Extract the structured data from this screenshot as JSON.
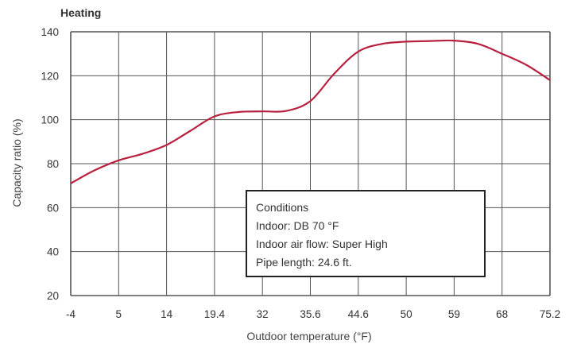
{
  "chart_data": {
    "type": "line",
    "title": "Heating",
    "xlabel": "Outdoor temperature (°F)",
    "ylabel": "Capacity ratio (%)",
    "x_ticks": [
      "-4",
      "5",
      "14",
      "19.4",
      "32",
      "35.6",
      "44.6",
      "50",
      "59",
      "68",
      "75.2"
    ],
    "y_ticks": [
      "20",
      "40",
      "60",
      "80",
      "100",
      "120",
      "140"
    ],
    "ylim": [
      20,
      140
    ],
    "grid": true,
    "series": [
      {
        "color": "#b8203f",
        "x_index": [
          0,
          0.5,
          1,
          1.5,
          2,
          2.5,
          3,
          3.5,
          4,
          4.5,
          5,
          5.5,
          6,
          6.5,
          7,
          7.5,
          8,
          8.5,
          9,
          9.5,
          10
        ],
        "values": [
          71,
          77,
          81.5,
          84.5,
          88.5,
          95,
          101.5,
          103.5,
          103.8,
          104,
          108.5,
          121,
          131,
          134.5,
          135.5,
          135.8,
          136,
          134.5,
          130,
          125,
          118
        ]
      }
    ],
    "annotation": {
      "lines": [
        "Conditions",
        "Indoor: DB 70 °F",
        "Indoor air flow: Super High",
        "Pipe length: 24.6 ft."
      ]
    }
  }
}
